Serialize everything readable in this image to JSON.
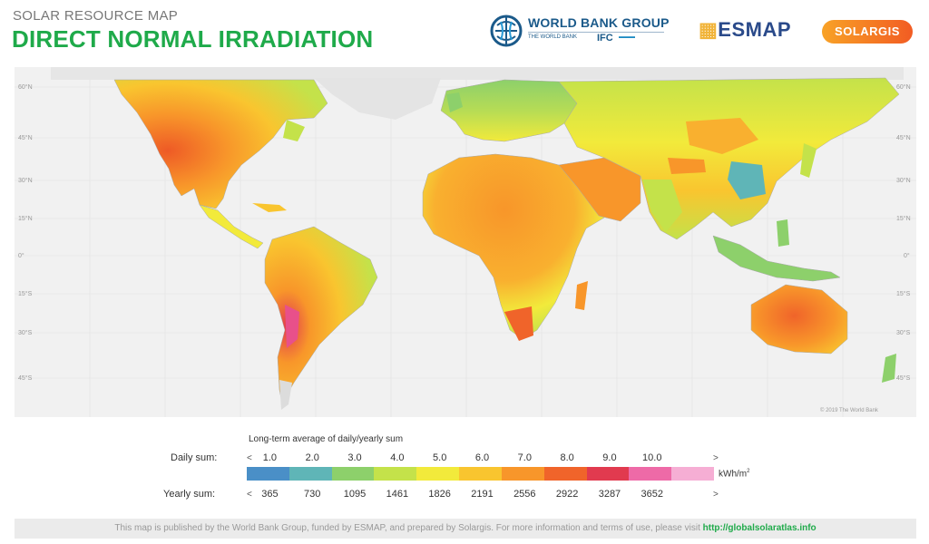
{
  "header": {
    "supertitle": "SOLAR RESOURCE MAP",
    "title": "DIRECT NORMAL IRRADIATION",
    "logos": {
      "world_bank": "WORLD BANK GROUP",
      "world_bank_sub": "THE WORLD BANK",
      "ifc": "IFC",
      "esmap": "ESMAP",
      "solargis": "SOLARGIS"
    }
  },
  "map": {
    "latitude_labels": [
      "60°N",
      "45°N",
      "30°N",
      "15°N",
      "0°",
      "15°S",
      "30°S",
      "45°S"
    ],
    "copyright": "© 2019 The World Bank",
    "colors": {
      "ocean": "#f1f1f1",
      "ice": "#e8e8e8",
      "borders": "#a8a8a8"
    }
  },
  "legend": {
    "title": "Long-term average of daily/yearly sum",
    "daily_label": "Daily sum:",
    "yearly_label": "Yearly sum:",
    "daily_ticks": [
      "1.0",
      "2.0",
      "3.0",
      "4.0",
      "5.0",
      "6.0",
      "7.0",
      "8.0",
      "9.0",
      "10.0"
    ],
    "yearly_ticks": [
      "365",
      "730",
      "1095",
      "1461",
      "1826",
      "2191",
      "2556",
      "2922",
      "3287",
      "3652"
    ],
    "arrow_left": "<",
    "arrow_right": ">",
    "unit": "kWh/m",
    "unit_sup": "2",
    "colorbar": [
      "#4a8fc7",
      "#5fb5b7",
      "#8dd06b",
      "#c4e24a",
      "#f2ea3b",
      "#f9c52f",
      "#f8962a",
      "#f0642a",
      "#e13a4f",
      "#ee6aa7",
      "#f6aed4"
    ]
  },
  "footer": {
    "text": "This map is published by the World Bank Group, funded by ESMAP, and prepared by Solargis. For more information and terms of use, please visit",
    "link": "http://globalsolaratlas.info"
  }
}
